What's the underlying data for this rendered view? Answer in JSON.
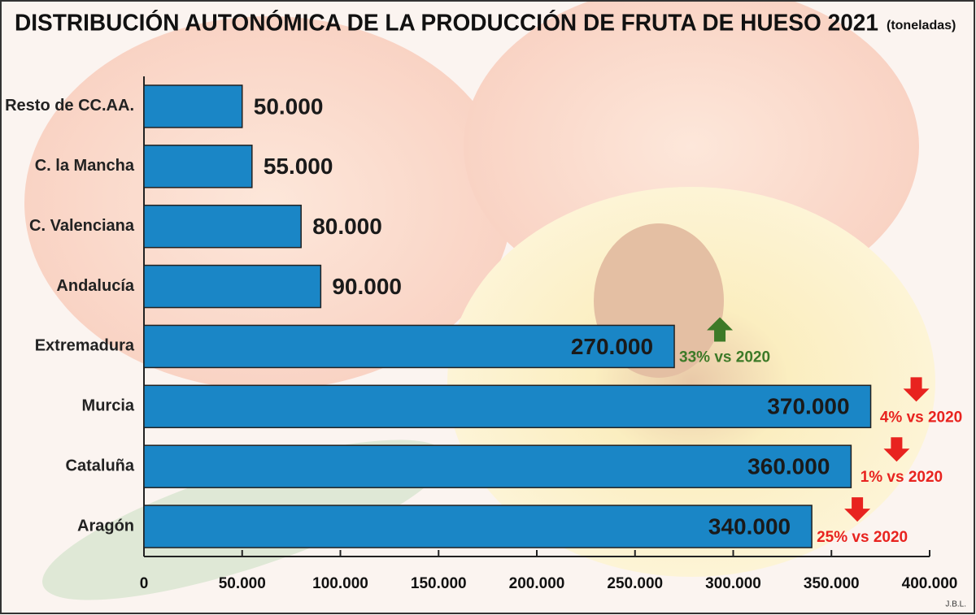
{
  "chart_data": {
    "type": "bar",
    "orientation": "horizontal",
    "title": "DISTRIBUCIÓN AUTONÓMICA DE LA PRODUCCIÓN DE FRUTA DE HUESO 2021",
    "subtitle": "(toneladas)",
    "credit": "J.B.L.",
    "categories": [
      "Resto de CC.AA.",
      "C. la Mancha",
      "C. Valenciana",
      "Andalucía",
      "Extremadura",
      "Murcia",
      "Cataluña",
      "Aragón"
    ],
    "values": [
      50000,
      55000,
      80000,
      90000,
      270000,
      370000,
      360000,
      340000
    ],
    "value_labels": [
      "50.000",
      "55.000",
      "80.000",
      "90.000",
      "270.000",
      "370.000",
      "360.000",
      "340.000"
    ],
    "color": "#1a86c6",
    "xlim": [
      0,
      400000
    ],
    "xticks": [
      0,
      {
        "value": 50000,
        "label": "50.000"
      },
      {
        "value": 100000,
        "label": "100.000"
      },
      {
        "value": 150000,
        "label": "150.000"
      },
      {
        "value": 200000,
        "label": "200.000"
      },
      {
        "value": 250000,
        "label": "250.000"
      },
      {
        "value": 300000,
        "label": "300.000"
      },
      {
        "value": 350000,
        "label": "350.000"
      },
      {
        "value": 400000,
        "label": "400.000"
      }
    ],
    "grid": false,
    "annotations": [
      {
        "text": "33% vs 2020",
        "category": "Extremadura",
        "direction": "up",
        "color": "#3d7a28"
      },
      {
        "text": "4% vs 2020",
        "category": "Murcia",
        "direction": "down",
        "color": "#e8231f"
      },
      {
        "text": "1% vs 2020",
        "category": "Cataluña",
        "direction": "down",
        "color": "#e8231f"
      },
      {
        "text": "25% vs 2020",
        "category": "Aragón",
        "direction": "down",
        "color": "#e8231f"
      }
    ]
  }
}
